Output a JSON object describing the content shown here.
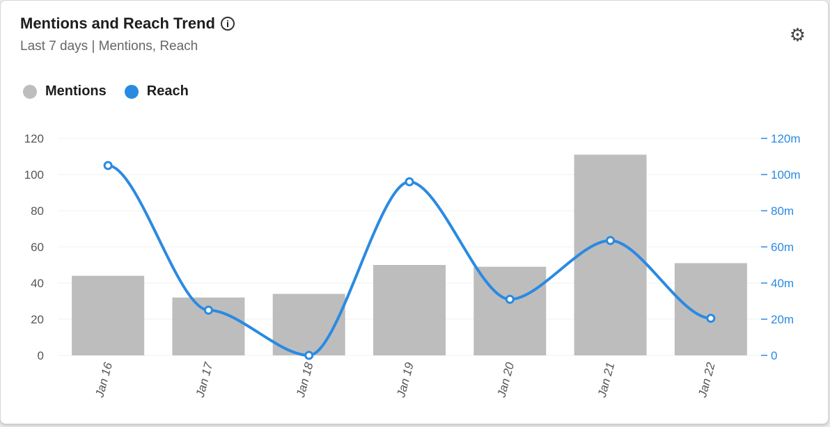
{
  "header": {
    "title": "Mentions and Reach Trend",
    "subtitle": "Last 7 days | Mentions, Reach",
    "info_icon": "i"
  },
  "chart_data": {
    "type": "bar",
    "title": "Mentions and Reach Trend",
    "categories": [
      "Jan 16",
      "Jan 17",
      "Jan 18",
      "Jan 19",
      "Jan 20",
      "Jan 21",
      "Jan 22"
    ],
    "series": [
      {
        "name": "Mentions",
        "type": "bar",
        "axis": "left",
        "color": "#bdbdbd",
        "values": [
          44,
          32,
          34,
          50,
          49,
          111,
          51
        ]
      },
      {
        "name": "Reach",
        "type": "line",
        "axis": "right",
        "color": "#2a8ae2",
        "values": [
          105,
          25,
          0,
          96,
          31,
          63.5,
          20.5
        ],
        "unit": "m"
      }
    ],
    "ylim": [
      0,
      120
    ],
    "yticks": [
      "0",
      "20",
      "40",
      "60",
      "80",
      "100",
      "120"
    ],
    "y2lim": [
      0,
      120
    ],
    "y2ticks": [
      "0",
      "20m",
      "40m",
      "60m",
      "80m",
      "100m",
      "120m"
    ],
    "grid": true,
    "legend": "top-left"
  }
}
